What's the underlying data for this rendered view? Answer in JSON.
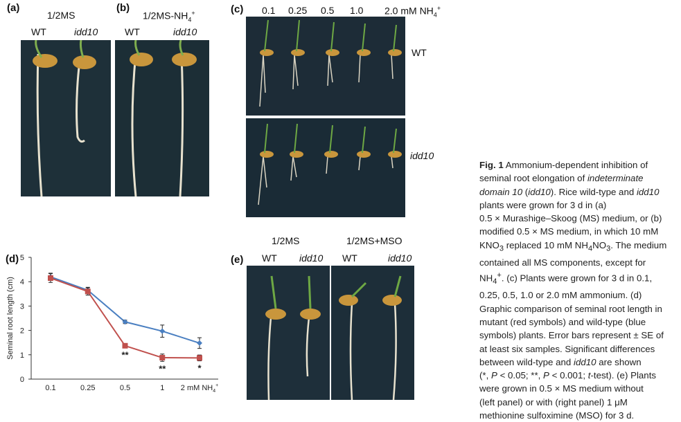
{
  "panels": {
    "a": {
      "label": "(a)",
      "title": "1/2MS",
      "col1": "WT",
      "col2": "idd10"
    },
    "b": {
      "label": "(b)",
      "title": "1/2MS-NH",
      "title_sub": "4",
      "title_sup": "+",
      "col1": "WT",
      "col2": "idd10"
    },
    "c": {
      "label": "(c)",
      "concentrations": [
        "0.1",
        "0.25",
        "0.5",
        "1.0",
        "2.0 mM NH"
      ],
      "conc_sub": "4",
      "conc_sup": "+",
      "row1": "WT",
      "row2": "idd10"
    },
    "d": {
      "label": "(d)"
    },
    "e": {
      "label": "(e)",
      "left_title": "1/2MS",
      "right_title": "1/2MS+MSO",
      "cols": [
        "WT",
        "idd10",
        "WT",
        "idd10"
      ]
    }
  },
  "chart_data": {
    "type": "line",
    "categories": [
      "0.1",
      "0.25",
      "0.5",
      "1",
      "2 mM NH"
    ],
    "last_cat_sub": "4",
    "last_cat_sup": "+",
    "ylabel": "Seminal root length (cm)",
    "ylim": [
      0,
      5
    ],
    "yticks": [
      "0",
      "1",
      "2",
      "3",
      "4",
      "5"
    ],
    "grid": false,
    "series": [
      {
        "color": "#4a7fc1",
        "marker": "diamond",
        "values": [
          4.2,
          3.65,
          2.35,
          1.97,
          1.48
        ],
        "errors": [
          0.15,
          0.12,
          0.07,
          0.25,
          0.22
        ]
      },
      {
        "color": "#c0504d",
        "marker": "square",
        "values": [
          4.15,
          3.6,
          1.37,
          0.88,
          0.87
        ],
        "errors": [
          0.18,
          0.15,
          0.08,
          0.15,
          0.12
        ]
      }
    ],
    "annotations": [
      "",
      "",
      "**",
      "**",
      "*"
    ]
  },
  "caption": {
    "lines": [
      "<b>Fig. 1</b> Ammonium-dependent inhibition of",
      "seminal root elongation of <i>indeterminate</i>",
      "<i>domain 10</i> (<i>idd10</i>). Rice wild-type and <i>idd10</i>",
      "plants were grown for 3 d in (a)",
      "0.5 × Murashige–Skoog (MS) medium, or (b)",
      "modified 0.5 × MS medium, in which 10 mM",
      "KNO<sub>3</sub> replaced 10 mM NH<sub>4</sub>NO<sub>3</sub>. The medium",
      "contained all MS components, except for",
      "NH<sub>4</sub><sup>+</sup>. (c) Plants were grown for 3 d in 0.1,",
      "0.25, 0.5, 1.0 or 2.0 mM ammonium. (d)",
      "Graphic comparison of seminal root length in",
      "mutant (red symbols) and wild-type (blue",
      "symbols) plants. Error bars represent ± SE of",
      "at least six samples. Significant differences",
      "between wild-type and <i>idd10</i> are shown",
      "(*, <i>P</i> &lt; 0.05; **, <i>P</i> &lt; 0.001; <i>t</i>-test). (e) Plants",
      "were grown in 0.5 × MS medium without",
      "(left panel) or with (right panel) 1 μM",
      "methionine sulfoximine (MSO) for 3 d."
    ]
  }
}
